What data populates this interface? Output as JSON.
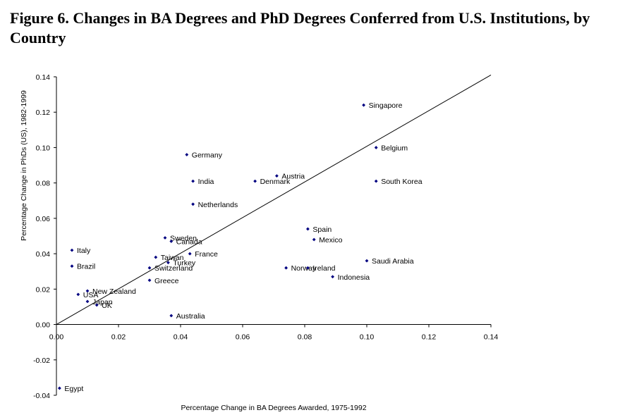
{
  "figure": {
    "title": "Figure 6. Changes in BA Degrees and PhD Degrees Conferred from U.S. Institutions, by Country"
  },
  "chart_data": {
    "type": "scatter",
    "xlabel": "Percentage Change in BA Degrees Awarded, 1975-1992",
    "ylabel": "Percentage Change in PhDs (US), 1982-1999",
    "xlim": [
      0,
      0.14
    ],
    "ylim": [
      -0.04,
      0.14
    ],
    "x_ticks": [
      "0.00",
      "0.02",
      "0.04",
      "0.06",
      "0.08",
      "0.10",
      "0.12",
      "0.14"
    ],
    "y_ticks": [
      "-0.04",
      "-0.02",
      "0.00",
      "0.02",
      "0.04",
      "0.06",
      "0.08",
      "0.10",
      "0.12",
      "0.14"
    ],
    "x_tick_values": [
      0,
      0.02,
      0.04,
      0.06,
      0.08,
      0.1,
      0.12,
      0.14
    ],
    "y_tick_values": [
      -0.04,
      -0.02,
      0,
      0.02,
      0.04,
      0.06,
      0.08,
      0.1,
      0.12,
      0.14
    ],
    "grid": false,
    "marker_color": "#000080",
    "reference_line": {
      "from": [
        0,
        0
      ],
      "to": [
        0.14,
        0.141
      ]
    },
    "points": [
      {
        "label": "Singapore",
        "x": 0.099,
        "y": 0.124
      },
      {
        "label": "Belgium",
        "x": 0.103,
        "y": 0.1
      },
      {
        "label": "Germany",
        "x": 0.042,
        "y": 0.096
      },
      {
        "label": "Austria",
        "x": 0.071,
        "y": 0.084
      },
      {
        "label": "India",
        "x": 0.044,
        "y": 0.081
      },
      {
        "label": "Denmark",
        "x": 0.064,
        "y": 0.081
      },
      {
        "label": "South Korea",
        "x": 0.103,
        "y": 0.081
      },
      {
        "label": "Netherlands",
        "x": 0.044,
        "y": 0.068
      },
      {
        "label": "Spain",
        "x": 0.081,
        "y": 0.054
      },
      {
        "label": "Mexico",
        "x": 0.083,
        "y": 0.048
      },
      {
        "label": "Sweden",
        "x": 0.035,
        "y": 0.049
      },
      {
        "label": "Canada",
        "x": 0.037,
        "y": 0.047
      },
      {
        "label": "Italy",
        "x": 0.005,
        "y": 0.042
      },
      {
        "label": "France",
        "x": 0.043,
        "y": 0.04
      },
      {
        "label": "Taiwan",
        "x": 0.032,
        "y": 0.038
      },
      {
        "label": "Turkey",
        "x": 0.036,
        "y": 0.035
      },
      {
        "label": "Saudi Arabia",
        "x": 0.1,
        "y": 0.036
      },
      {
        "label": "Brazil",
        "x": 0.005,
        "y": 0.033
      },
      {
        "label": "Switzerland",
        "x": 0.03,
        "y": 0.032
      },
      {
        "label": "Norway",
        "x": 0.074,
        "y": 0.032
      },
      {
        "label": "Ireland",
        "x": 0.081,
        "y": 0.032
      },
      {
        "label": "Indonesia",
        "x": 0.089,
        "y": 0.027
      },
      {
        "label": "Greece",
        "x": 0.03,
        "y": 0.025
      },
      {
        "label": "New Zealand",
        "x": 0.01,
        "y": 0.019
      },
      {
        "label": "USA",
        "x": 0.007,
        "y": 0.017
      },
      {
        "label": "Japan",
        "x": 0.01,
        "y": 0.013
      },
      {
        "label": "UK",
        "x": 0.013,
        "y": 0.011
      },
      {
        "label": "Australia",
        "x": 0.037,
        "y": 0.005
      },
      {
        "label": "Egypt",
        "x": 0.001,
        "y": -0.036
      }
    ]
  }
}
